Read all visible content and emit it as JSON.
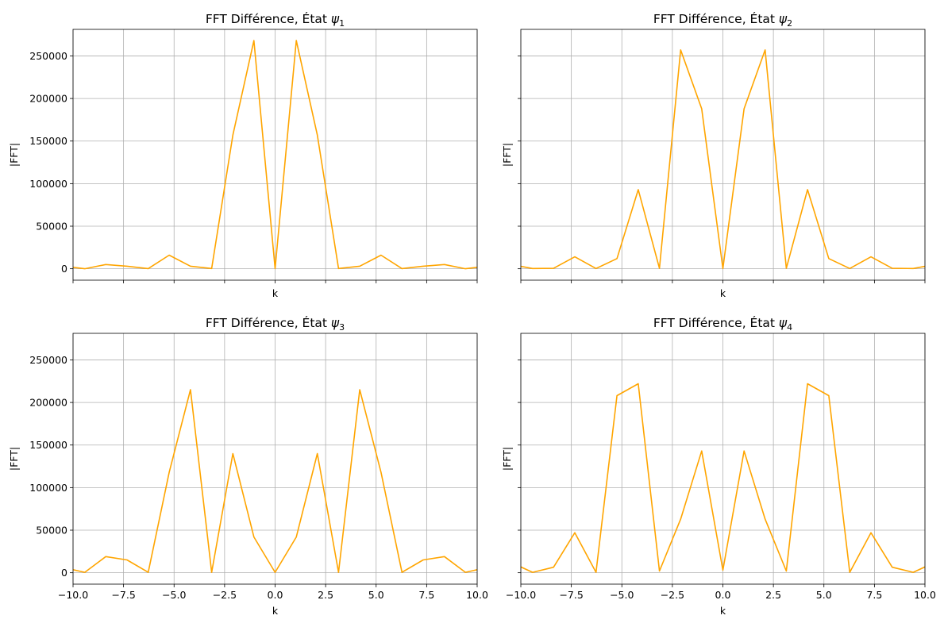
{
  "chart_data": [
    {
      "type": "line",
      "title": "FFT Différence, État ",
      "title_symbol": "ψ",
      "title_subscript": "1",
      "xlabel": "k",
      "ylabel": "|FFT|",
      "xlim": [
        -10,
        10
      ],
      "ylim": [
        -13390,
        281190
      ],
      "xticks": [
        -10,
        -7.5,
        -5,
        -2.5,
        0,
        2.5,
        5,
        7.5,
        10
      ],
      "xtick_labels": [],
      "yticks": [
        0,
        50000,
        100000,
        150000,
        200000,
        250000
      ],
      "ytick_labels": [
        "0",
        "50000",
        "100000",
        "150000",
        "200000",
        "250000"
      ],
      "grid": true,
      "color": "#ffa500",
      "series": [
        {
          "x": [
            -10.47,
            -9.42,
            -8.38,
            -7.33,
            -6.28,
            -5.24,
            -4.19,
            -3.14,
            -2.09,
            -1.05,
            0,
            1.05,
            2.09,
            3.14,
            4.19,
            5.24,
            6.28,
            7.33,
            8.38,
            9.42,
            10.47
          ],
          "values": [
            3000,
            0,
            5000,
            3000,
            200,
            16000,
            3000,
            300,
            157000,
            268000,
            200,
            268000,
            157000,
            300,
            3000,
            16000,
            200,
            3000,
            5000,
            0,
            3000
          ]
        }
      ]
    },
    {
      "type": "line",
      "title": "FFT Différence, État ",
      "title_symbol": "ψ",
      "title_subscript": "2",
      "xlabel": "k",
      "ylabel": "|FFT|",
      "xlim": [
        -10,
        10
      ],
      "ylim": [
        -13390,
        281190
      ],
      "xticks": [
        -10,
        -7.5,
        -5,
        -2.5,
        0,
        2.5,
        5,
        7.5,
        10
      ],
      "xtick_labels": [],
      "yticks": [
        0,
        50000,
        100000,
        150000,
        200000,
        250000
      ],
      "ytick_labels": [],
      "grid": true,
      "color": "#ffa500",
      "series": [
        {
          "x": [
            -10.47,
            -9.42,
            -8.38,
            -7.33,
            -6.28,
            -5.24,
            -4.19,
            -3.14,
            -2.09,
            -1.05,
            0,
            1.05,
            2.09,
            3.14,
            4.19,
            5.24,
            6.28,
            7.33,
            8.38,
            9.42,
            10.47
          ],
          "values": [
            5000,
            300,
            500,
            14000,
            300,
            12000,
            93000,
            500,
            257000,
            188000,
            300,
            188000,
            257000,
            500,
            93000,
            12000,
            300,
            14000,
            500,
            300,
            5000
          ]
        }
      ]
    },
    {
      "type": "line",
      "title": "FFT Différence, État ",
      "title_symbol": "ψ",
      "title_subscript": "3",
      "xlabel": "k",
      "ylabel": "|FFT|",
      "xlim": [
        -10,
        10
      ],
      "ylim": [
        -13390,
        281190
      ],
      "xticks": [
        -10,
        -7.5,
        -5,
        -2.5,
        0,
        2.5,
        5,
        7.5,
        10
      ],
      "xtick_labels": [
        "−10.0",
        "−7.5",
        "−5.0",
        "−2.5",
        "0.0",
        "2.5",
        "5.0",
        "7.5",
        "10.0"
      ],
      "yticks": [
        0,
        50000,
        100000,
        150000,
        200000,
        250000
      ],
      "ytick_labels": [
        "0",
        "50000",
        "100000",
        "150000",
        "200000",
        "250000"
      ],
      "grid": true,
      "color": "#ffa500",
      "series": [
        {
          "x": [
            -10.47,
            -9.42,
            -8.38,
            -7.33,
            -6.28,
            -5.24,
            -4.19,
            -3.14,
            -2.09,
            -1.05,
            0,
            1.05,
            2.09,
            3.14,
            4.19,
            5.24,
            6.28,
            7.33,
            8.38,
            9.42,
            10.47
          ],
          "values": [
            6000,
            500,
            19000,
            15000,
            500,
            118000,
            215000,
            500,
            140000,
            42000,
            500,
            42000,
            140000,
            500,
            215000,
            118000,
            500,
            15000,
            19000,
            500,
            6000
          ]
        }
      ]
    },
    {
      "type": "line",
      "title": "FFT Différence, État ",
      "title_symbol": "ψ",
      "title_subscript": "4",
      "xlabel": "k",
      "ylabel": "|FFT|",
      "xlim": [
        -10,
        10
      ],
      "ylim": [
        -13390,
        281190
      ],
      "xticks": [
        -10,
        -7.5,
        -5,
        -2.5,
        0,
        2.5,
        5,
        7.5,
        10
      ],
      "xtick_labels": [
        "−10.0",
        "−7.5",
        "−5.0",
        "−2.5",
        "0.0",
        "2.5",
        "5.0",
        "7.5",
        "10.0"
      ],
      "yticks": [
        0,
        50000,
        100000,
        150000,
        200000,
        250000
      ],
      "ytick_labels": [],
      "grid": true,
      "color": "#ffa500",
      "series": [
        {
          "x": [
            -10.47,
            -9.42,
            -8.38,
            -7.33,
            -6.28,
            -5.24,
            -4.19,
            -3.14,
            -2.09,
            -1.05,
            0,
            1.05,
            2.09,
            3.14,
            4.19,
            5.24,
            6.28,
            7.33,
            8.38,
            9.42,
            10.47
          ],
          "values": [
            12000,
            500,
            6500,
            47000,
            500,
            208000,
            222000,
            2000,
            63000,
            143000,
            3000,
            143000,
            63000,
            2000,
            222000,
            208000,
            500,
            47000,
            6500,
            500,
            12000
          ]
        }
      ]
    }
  ]
}
